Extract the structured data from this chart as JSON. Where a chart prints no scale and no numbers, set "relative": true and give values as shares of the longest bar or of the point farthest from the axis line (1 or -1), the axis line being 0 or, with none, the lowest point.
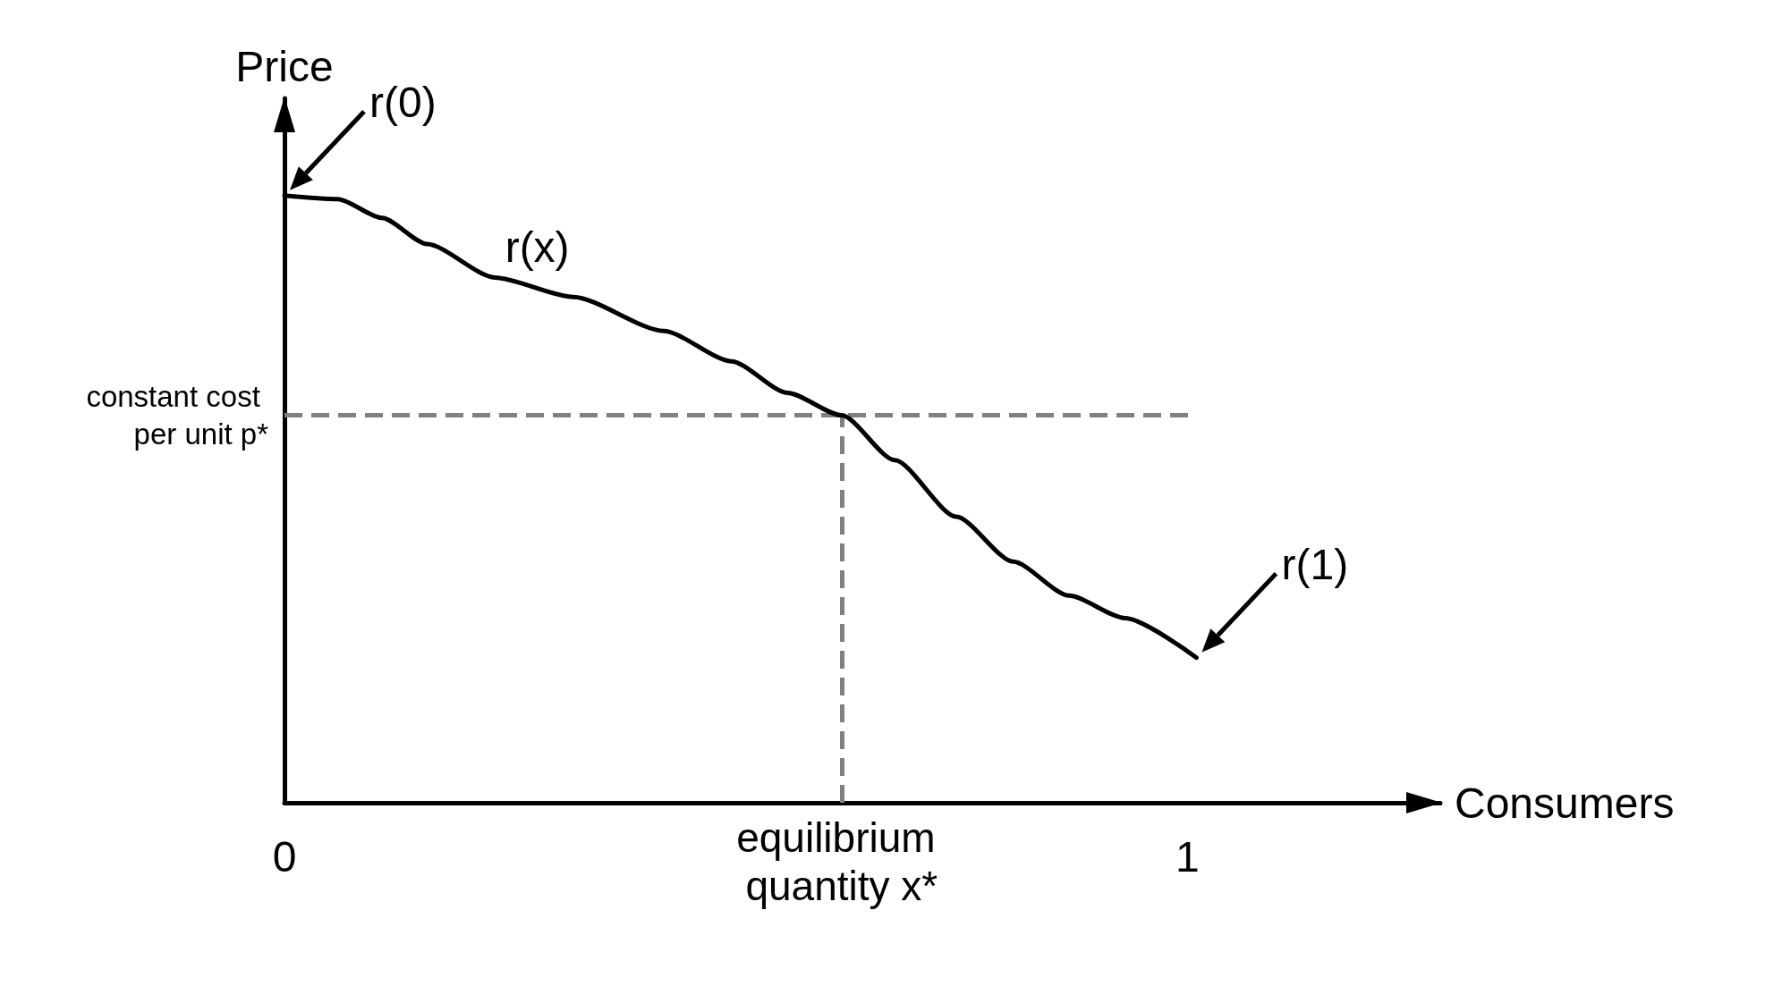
{
  "chart_data": {
    "type": "line",
    "relative": true,
    "xlabel": "Consumers",
    "ylabel": "Price",
    "x": [
      0,
      0.059,
      0.108,
      0.158,
      0.233,
      0.32,
      0.42,
      0.495,
      0.557,
      0.617,
      0.676,
      0.744,
      0.807,
      0.869,
      0.931,
      1.01
    ],
    "series": [
      {
        "color": "#000000",
        "values": [
          1.0,
          0.994,
          0.963,
          0.92,
          0.865,
          0.833,
          0.777,
          0.727,
          0.675,
          0.638,
          0.564,
          0.471,
          0.397,
          0.341,
          0.304,
          0.239
        ]
      }
    ],
    "xlim": [
      0,
      1.28
    ],
    "xticks": [
      0,
      1
    ],
    "ref_lines": [
      {
        "axis": "y",
        "value": 0.638,
        "label": "constant cost per unit p*",
        "color": "#808080",
        "line_style": "dashed"
      },
      {
        "axis": "x",
        "value": 0.617,
        "label": "equilibrium quantity x*",
        "color": "#808080",
        "line_style": "dashed"
      }
    ],
    "annotations": [
      {
        "text": "r(0)",
        "x": 0,
        "y": 1.0
      },
      {
        "text": "r(x)",
        "x": 0.28,
        "y": 0.85
      },
      {
        "text": "r(1)",
        "x": 1.01,
        "y": 0.239
      }
    ],
    "grid": false,
    "marker": "none",
    "line_style": "solid"
  }
}
